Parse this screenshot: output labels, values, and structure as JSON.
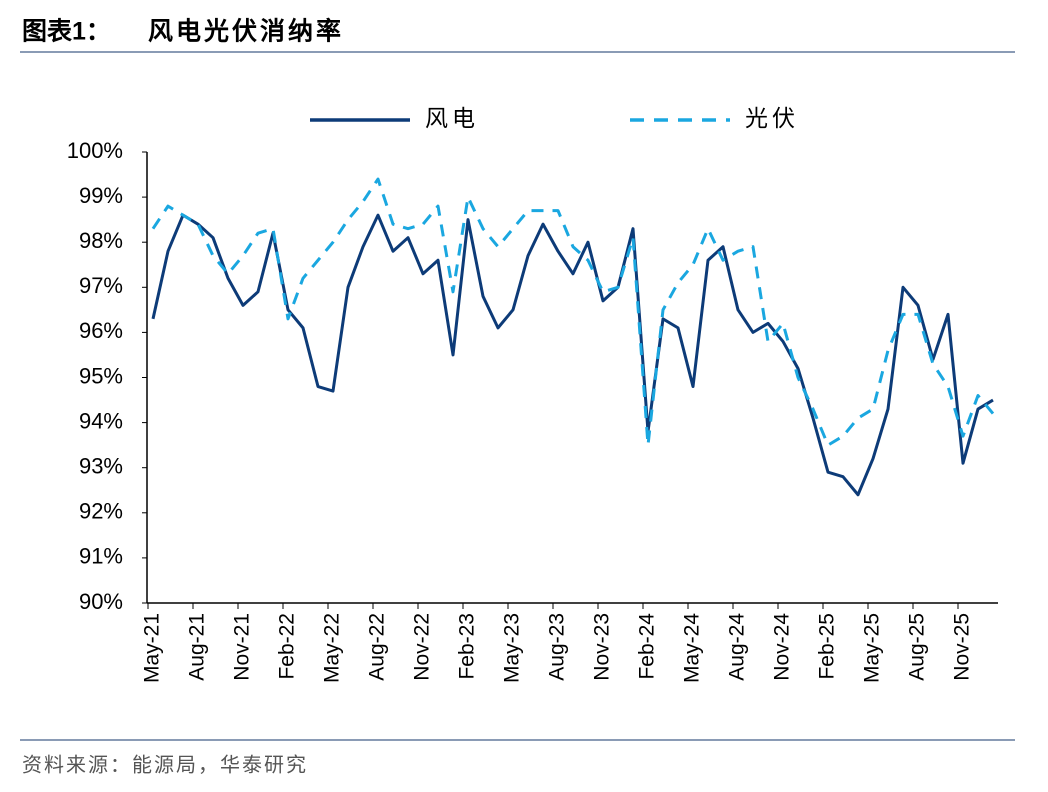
{
  "header": {
    "label": "图表1：",
    "title": "风电光伏消纳率"
  },
  "source": "资料来源：能源局，华泰研究",
  "chart_data": {
    "type": "line",
    "categories": [
      "May-21",
      null,
      null,
      "Aug-21",
      null,
      null,
      "Nov-21",
      null,
      null,
      "Feb-22",
      null,
      null,
      "May-22",
      null,
      null,
      "Aug-22",
      null,
      null,
      "Nov-22",
      null,
      null,
      "Feb-23",
      null,
      null,
      "May-23",
      null,
      null,
      "Aug-23",
      null,
      null,
      "Nov-23",
      null,
      null,
      "Feb-24",
      null,
      null,
      "May-24",
      null,
      null,
      "Aug-24",
      null,
      null,
      "Nov-24",
      null,
      null,
      "Feb-25",
      null,
      null,
      "May-25",
      null,
      null,
      "Aug-25",
      null,
      null,
      "Nov-25",
      null,
      null
    ],
    "series": [
      {
        "name": "风电",
        "color": "#0d3b78",
        "dash": false,
        "values": [
          96.3,
          97.8,
          98.6,
          98.4,
          98.1,
          97.2,
          96.6,
          96.9,
          98.2,
          96.5,
          96.1,
          94.8,
          94.7,
          97.0,
          97.9,
          98.6,
          97.8,
          98.1,
          97.3,
          97.6,
          95.5,
          98.5,
          96.8,
          96.1,
          96.5,
          97.7,
          98.4,
          97.8,
          97.3,
          98.0,
          96.7,
          97.0,
          98.3,
          93.8,
          96.3,
          96.1,
          94.8,
          97.6,
          97.9,
          96.5,
          96.0,
          96.2,
          95.8,
          95.2,
          94.1,
          92.9,
          92.8,
          92.4,
          93.2,
          94.3,
          97.0,
          96.6,
          95.4,
          96.4,
          93.1,
          94.3,
          94.5
        ]
      },
      {
        "name": "光伏",
        "color": "#1aa7e0",
        "dash": true,
        "values": [
          98.3,
          98.8,
          98.6,
          98.4,
          97.7,
          97.3,
          97.7,
          98.2,
          98.3,
          96.3,
          97.2,
          97.6,
          98.0,
          98.5,
          98.9,
          99.4,
          98.4,
          98.3,
          98.4,
          98.8,
          96.9,
          99.0,
          98.3,
          97.9,
          98.3,
          98.7,
          98.7,
          98.7,
          97.9,
          97.6,
          96.9,
          97.0,
          98.1,
          93.5,
          96.5,
          97.1,
          97.5,
          98.3,
          97.6,
          97.8,
          97.9,
          95.8,
          96.2,
          95.0,
          94.3,
          93.5,
          93.7,
          94.1,
          94.3,
          95.6,
          96.4,
          96.4,
          95.3,
          94.8,
          93.7,
          94.6,
          94.2
        ]
      }
    ],
    "ylim": [
      90,
      100
    ],
    "yticks": [
      {
        "value": 90,
        "label": "90%"
      },
      {
        "value": 91,
        "label": "91%"
      },
      {
        "value": 92,
        "label": "92%"
      },
      {
        "value": 93,
        "label": "93%"
      },
      {
        "value": 94,
        "label": "94%"
      },
      {
        "value": 95,
        "label": "95%"
      },
      {
        "value": 96,
        "label": "96%"
      },
      {
        "value": 97,
        "label": "97%"
      },
      {
        "value": 98,
        "label": "98%"
      },
      {
        "value": 99,
        "label": "99%"
      },
      {
        "value": 100,
        "label": "100%"
      }
    ],
    "legend": "top",
    "grid": false
  }
}
